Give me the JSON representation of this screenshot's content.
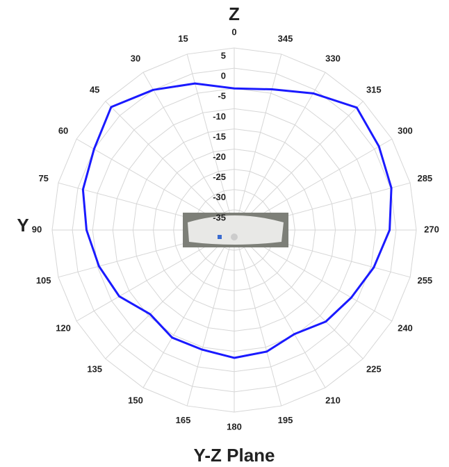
{
  "chart_data": {
    "type": "polar",
    "title": "Y-Z Plane",
    "top_axis_label": "Z",
    "left_axis_label": "Y",
    "theta": [
      0,
      15,
      30,
      45,
      60,
      75,
      90,
      105,
      120,
      135,
      150,
      165,
      180,
      195,
      210,
      225,
      240,
      255,
      270,
      285,
      300,
      315,
      330,
      345
    ],
    "values": [
      -5,
      -2.5,
      0,
      3,
      0,
      -1.3,
      -3.5,
      -5.4,
      -7.2,
      -10.6,
      -9.3,
      -9.4,
      -8.4,
      -8.9,
      -10.3,
      -8,
      -6.6,
      -4.3,
      -1.6,
      0.2,
      1.3,
      2.8,
      -1,
      -4
    ],
    "color": "#1a1aff",
    "rlim": [
      -40,
      5
    ],
    "rticks": [
      5,
      0,
      -5,
      -10,
      -15,
      -20,
      -25,
      -30,
      -35
    ],
    "theta_direction": "counterclockwise",
    "theta_zero": "top",
    "grid": true
  }
}
